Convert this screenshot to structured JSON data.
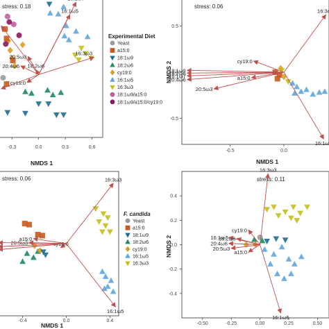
{
  "palette": {
    "Yeast": "#9a9a9a",
    "a15:0": "#c85a1e",
    "18:1ω9": "#1f6d8e",
    "18:2ω6": "#1c8a63",
    "cy19:0": "#e09a24",
    "16:1ω5": "#5fa5dd",
    "16:3ω3": "#c4bf18",
    "18:1ω9/a15:0": "#c0609a",
    "18:1ω9/a15:0/cy19:0": "#8a1a5f"
  },
  "arrow_color": "#c0504d",
  "chart_data": [
    {
      "type": "scatter",
      "stress": "stress: 0.18",
      "xlabel": "NMDS 1",
      "ylabel": "",
      "xlim": [
        -0.45,
        0.72
      ],
      "ylim": [
        -0.8,
        0.95
      ],
      "xticks": [
        "-0.3",
        "0.0",
        "0.3",
        "0.6"
      ],
      "yticks": [],
      "vectors": [
        {
          "label": "16:1ω7",
          "x": 0.42,
          "y": 0.92
        },
        {
          "label": "16:1ω5",
          "x": 0.35,
          "y": 0.76
        },
        {
          "label": "16:3ω3",
          "x": 0.62,
          "y": 0.22
        },
        {
          "label": "20:5ω3",
          "x": -0.12,
          "y": 0.23
        },
        {
          "label": "20:4ω6",
          "x": -0.2,
          "y": 0.11
        },
        {
          "label": "18:2ω6",
          "x": -0.03,
          "y": 0.06
        },
        {
          "label": "cy19:0",
          "x": -0.13,
          "y": -0.1
        },
        {
          "label": "18:1ω9",
          "x": -0.42,
          "y": -0.18
        },
        {
          "label": "15:0",
          "x": -0.42,
          "y": 0.62
        }
      ],
      "points": [
        {
          "g": "16:1ω5",
          "x": 0.28,
          "y": 0.86
        },
        {
          "g": "16:1ω5",
          "x": 0.22,
          "y": 0.77
        },
        {
          "g": "16:1ω5",
          "x": 0.31,
          "y": 0.62
        },
        {
          "g": "16:1ω5",
          "x": 0.29,
          "y": 0.49
        },
        {
          "g": "16:1ω5",
          "x": 0.34,
          "y": 0.44
        },
        {
          "g": "16:1ω5",
          "x": 0.55,
          "y": 0.48
        },
        {
          "g": "16:1ω5",
          "x": 0.42,
          "y": 0.55
        },
        {
          "g": "16:1ω5",
          "x": 0.13,
          "y": 0.78
        },
        {
          "g": "18:1ω9",
          "x": 0.12,
          "y": 0.9
        },
        {
          "g": "18:1ω9",
          "x": 0.0,
          "y": -0.37
        },
        {
          "g": "18:1ω9",
          "x": 0.11,
          "y": -0.37
        },
        {
          "g": "18:1ω9",
          "x": -0.35,
          "y": -0.48
        },
        {
          "g": "18:1ω9",
          "x": -0.15,
          "y": -0.49
        },
        {
          "g": "18:1ω9",
          "x": 0.2,
          "y": -0.51
        },
        {
          "g": "18:1ω9",
          "x": 0.28,
          "y": -0.51
        },
        {
          "g": "16:3ω3",
          "x": 0.41,
          "y": 0.25
        },
        {
          "g": "16:3ω3",
          "x": 0.48,
          "y": 0.34
        },
        {
          "g": "16:3ω3",
          "x": 0.53,
          "y": 0.27
        },
        {
          "g": "16:3ω3",
          "x": 0.59,
          "y": 0.21
        },
        {
          "g": "16:3ω3",
          "x": 0.45,
          "y": 0.19
        },
        {
          "g": "18:2ω6",
          "x": -0.15,
          "y": -0.22
        },
        {
          "g": "18:2ω6",
          "x": -0.08,
          "y": -0.24
        },
        {
          "g": "18:2ω6",
          "x": 0.1,
          "y": -0.2
        },
        {
          "g": "18:2ω6",
          "x": 0.16,
          "y": -0.26
        },
        {
          "g": "18:2ω6",
          "x": 0.25,
          "y": -0.23
        },
        {
          "g": "cy19:0",
          "x": -0.34,
          "y": 0.43
        },
        {
          "g": "cy19:0",
          "x": -0.32,
          "y": 0.31
        },
        {
          "g": "cy19:0",
          "x": -0.3,
          "y": 0.21
        },
        {
          "g": "cy19:0",
          "x": -0.27,
          "y": 0.11
        },
        {
          "g": "cy19:0",
          "x": -0.18,
          "y": 0.38
        },
        {
          "g": "a15:0",
          "x": -0.38,
          "y": 0.58
        },
        {
          "g": "a15:0",
          "x": -0.36,
          "y": 0.46
        },
        {
          "g": "a15:0",
          "x": -0.29,
          "y": 0.18
        },
        {
          "g": "a15:0",
          "x": -0.36,
          "y": -0.12
        },
        {
          "g": "18:1ω9/a15:0",
          "x": -0.35,
          "y": 0.74
        },
        {
          "g": "18:1ω9/a15:0",
          "x": -0.28,
          "y": 0.64
        },
        {
          "g": "18:1ω9/a15:0/cy19:0",
          "x": -0.33,
          "y": 0.67
        },
        {
          "g": "18:1ω9/a15:0/cy19:0",
          "x": -0.22,
          "y": 0.5
        },
        {
          "g": "18:1ω9/a15:0/cy19:0",
          "x": -0.37,
          "y": 0.39
        },
        {
          "g": "Yeast",
          "x": -0.4,
          "y": -0.04
        }
      ],
      "legend": {
        "title": "Experimental Diet",
        "entries": [
          "Yeast",
          "a15:0",
          "18:1ω9",
          "18:2ω6",
          "cy19:0",
          "16:1ω5",
          "16:3ω3",
          "18:1ω9/a15:0",
          "18:1ω9/a15:0/cy19:0"
        ]
      }
    },
    {
      "type": "scatter",
      "stress": "stress: 0.06",
      "xlabel": "NMDS 1",
      "ylabel": "NMDS 2",
      "xlim": [
        -0.95,
        0.42
      ],
      "ylim": [
        -0.78,
        0.78
      ],
      "xticks": [
        "-0.5",
        "0.0"
      ],
      "yticks": [
        "0.5",
        "0.0",
        "-0.5"
      ],
      "vectors": [
        {
          "label": "16:3ω3",
          "x": 0.39,
          "y": 0.62
        },
        {
          "label": "16:1ω5",
          "x": 0.37,
          "y": -0.72
        },
        {
          "label": "cy19:0",
          "x": -0.28,
          "y": 0.12
        },
        {
          "label": "18:1ω9",
          "x": -0.9,
          "y": 0.02
        },
        {
          "label": "18:2ω6",
          "x": -0.9,
          "y": -0.01
        },
        {
          "label": "a15:0",
          "x": -0.3,
          "y": -0.06
        },
        {
          "label": "16:1ω7",
          "x": -0.9,
          "y": -0.04
        },
        {
          "label": "20:4ω6",
          "x": -0.9,
          "y": -0.08
        },
        {
          "label": "20:5ω3",
          "x": -0.65,
          "y": -0.18
        }
      ],
      "points": [
        {
          "g": "16:1ω5",
          "x": 0.08,
          "y": -0.12
        },
        {
          "g": "16:1ω5",
          "x": 0.12,
          "y": -0.16
        },
        {
          "g": "16:1ω5",
          "x": 0.16,
          "y": -0.21
        },
        {
          "g": "16:1ω5",
          "x": 0.21,
          "y": -0.19
        },
        {
          "g": "16:1ω5",
          "x": 0.27,
          "y": -0.24
        },
        {
          "g": "16:1ω5",
          "x": 0.33,
          "y": -0.22
        },
        {
          "g": "16:1ω5",
          "x": 0.38,
          "y": -0.21
        },
        {
          "g": "16:1ω5",
          "x": 0.1,
          "y": -0.23
        },
        {
          "g": "a15:0",
          "x": -0.08,
          "y": 0.0
        },
        {
          "g": "a15:0",
          "x": -0.04,
          "y": -0.03
        },
        {
          "g": "a15:0",
          "x": -0.06,
          "y": -0.07
        },
        {
          "g": "cy19:0",
          "x": -0.03,
          "y": 0.04
        },
        {
          "g": "cy19:0",
          "x": 0.0,
          "y": -0.05
        },
        {
          "g": "16:3ω3",
          "x": -0.02,
          "y": 0.02
        },
        {
          "g": "16:3ω3",
          "x": 0.04,
          "y": -0.1
        }
      ]
    },
    {
      "type": "scatter",
      "stress": "stress: 0.06",
      "xlabel": "NMDS 1",
      "ylabel": "",
      "xlim": [
        -0.62,
        0.48
      ],
      "ylim": [
        -0.72,
        0.72
      ],
      "xticks": [
        "-0.4",
        "0.0",
        "0.4"
      ],
      "yticks": [],
      "vectors": [
        {
          "label": "16:3ω3",
          "x": 0.43,
          "y": 0.6
        },
        {
          "label": "16:1ω5",
          "x": 0.45,
          "y": -0.63
        },
        {
          "label": "cy19:0",
          "x": -0.05,
          "y": -0.04
        },
        {
          "label": "20:5ω3",
          "x": -0.34,
          "y": 0.01
        },
        {
          "label": "a15:0",
          "x": -0.3,
          "y": 0.05
        },
        {
          "label": "20:5ω3",
          "x": -0.62,
          "y": 0.01
        },
        {
          "label": "16:1ω7",
          "x": -0.62,
          "y": -0.03
        },
        {
          "label": "18:1ω9",
          "x": -0.62,
          "y": -0.06
        }
      ],
      "points": [
        {
          "g": "a15:0",
          "x": -0.38,
          "y": 0.2
        },
        {
          "g": "a15:0",
          "x": -0.34,
          "y": 0.19
        },
        {
          "g": "a15:0",
          "x": -0.26,
          "y": 0.09
        },
        {
          "g": "a15:0",
          "x": -0.22,
          "y": 0.08
        },
        {
          "g": "18:2ω6",
          "x": -0.36,
          "y": -0.1
        },
        {
          "g": "18:2ω6",
          "x": -0.4,
          "y": -0.18
        },
        {
          "g": "18:2ω6",
          "x": -0.3,
          "y": -0.14
        },
        {
          "g": "18:2ω6",
          "x": -0.26,
          "y": -0.08
        },
        {
          "g": "cy19:0",
          "x": -0.29,
          "y": -0.02
        },
        {
          "g": "cy19:0",
          "x": -0.24,
          "y": -0.07
        },
        {
          "g": "18:1ω9",
          "x": -0.21,
          "y": -0.08
        },
        {
          "g": "18:1ω9",
          "x": -0.19,
          "y": -0.11
        },
        {
          "g": "16:3ω3",
          "x": 0.27,
          "y": 0.35
        },
        {
          "g": "16:3ω3",
          "x": 0.34,
          "y": 0.3
        },
        {
          "g": "16:3ω3",
          "x": 0.38,
          "y": 0.26
        },
        {
          "g": "16:3ω3",
          "x": 0.3,
          "y": 0.22
        },
        {
          "g": "16:3ω3",
          "x": 0.36,
          "y": 0.18
        },
        {
          "g": "16:3ω3",
          "x": 0.33,
          "y": 0.12
        },
        {
          "g": "16:3ω3",
          "x": 0.4,
          "y": 0.12
        },
        {
          "g": "16:1ω5",
          "x": 0.33,
          "y": -0.28
        },
        {
          "g": "16:1ω5",
          "x": 0.36,
          "y": -0.33
        },
        {
          "g": "16:1ω5",
          "x": 0.41,
          "y": -0.37
        },
        {
          "g": "16:1ω5",
          "x": 0.38,
          "y": -0.43
        },
        {
          "g": "16:1ω5",
          "x": 0.43,
          "y": -0.48
        },
        {
          "g": "16:1ω5",
          "x": 0.35,
          "y": -0.45
        }
      ],
      "legend": {
        "title": "F. candida",
        "entries": [
          "Yeast",
          "a15:0",
          "18:1ω9",
          "18:2ω6",
          "cy19:0",
          "16:1ω5",
          "16:3ω3"
        ]
      }
    },
    {
      "type": "scatter",
      "stress": "stress: 0.11",
      "xlabel": "",
      "ylabel": "NMDS 2",
      "xlim": [
        -0.68,
        0.6
      ],
      "ylim": [
        -0.6,
        0.6
      ],
      "xticks": [
        "-0.50",
        "-0.25",
        "0.00",
        "0.25",
        "0.50"
      ],
      "yticks": [
        "0.4",
        "0.2",
        "0.0",
        "-0.2",
        "-0.4"
      ],
      "vectors": [
        {
          "label": "16:3ω3",
          "x": 0.07,
          "y": 0.58
        },
        {
          "label": "16:1ω5",
          "x": 0.18,
          "y": -0.56
        },
        {
          "label": "cy19:0",
          "x": -0.1,
          "y": 0.12
        },
        {
          "label": "16:1ω7",
          "x": -0.27,
          "y": 0.06
        },
        {
          "label": "18:2ω6",
          "x": -0.2,
          "y": 0.05
        },
        {
          "label": "20:4ω6",
          "x": -0.27,
          "y": 0.01
        },
        {
          "label": "20:5ω3",
          "x": -0.25,
          "y": -0.03
        },
        {
          "label": "a15:0",
          "x": -0.1,
          "y": -0.06
        }
      ],
      "points": [
        {
          "g": "16:3ω3",
          "x": 0.06,
          "y": 0.29
        },
        {
          "g": "16:3ω3",
          "x": 0.12,
          "y": 0.31
        },
        {
          "g": "16:3ω3",
          "x": 0.22,
          "y": 0.27
        },
        {
          "g": "16:3ω3",
          "x": 0.29,
          "y": 0.31
        },
        {
          "g": "16:3ω3",
          "x": 0.35,
          "y": 0.26
        },
        {
          "g": "16:3ω3",
          "x": 0.41,
          "y": 0.31
        },
        {
          "g": "16:3ω3",
          "x": 0.27,
          "y": 0.22
        },
        {
          "g": "16:3ω3",
          "x": 0.32,
          "y": 0.2
        },
        {
          "g": "16:3ω3",
          "x": 0.16,
          "y": 0.24
        },
        {
          "g": "Yeast",
          "x": 0.0,
          "y": 0.06
        },
        {
          "g": "18:2ω6",
          "x": -0.05,
          "y": 0.04
        },
        {
          "g": "18:2ω6",
          "x": 0.02,
          "y": 0.03
        },
        {
          "g": "18:1ω9",
          "x": 0.06,
          "y": 0.03
        },
        {
          "g": "18:1ω9",
          "x": 0.14,
          "y": 0.05
        },
        {
          "g": "18:1ω9",
          "x": 0.22,
          "y": 0.04
        },
        {
          "g": "cy19:0",
          "x": -0.12,
          "y": 0.0
        },
        {
          "g": "cy19:0",
          "x": -0.04,
          "y": 0.0
        },
        {
          "g": "16:1ω5",
          "x": 0.04,
          "y": -0.04
        },
        {
          "g": "16:1ω5",
          "x": 0.12,
          "y": -0.08
        },
        {
          "g": "16:1ω5",
          "x": 0.19,
          "y": -0.02
        },
        {
          "g": "16:1ω5",
          "x": 0.25,
          "y": -0.12
        },
        {
          "g": "16:1ω5",
          "x": 0.3,
          "y": -0.16
        },
        {
          "g": "16:1ω5",
          "x": 0.15,
          "y": -0.24
        },
        {
          "g": "16:1ω5",
          "x": 0.21,
          "y": -0.28
        },
        {
          "g": "16:1ω5",
          "x": 0.27,
          "y": -0.24
        },
        {
          "g": "16:1ω5",
          "x": 0.36,
          "y": -0.1
        },
        {
          "g": "16:1ω5",
          "x": 0.09,
          "y": -0.16
        }
      ]
    }
  ]
}
